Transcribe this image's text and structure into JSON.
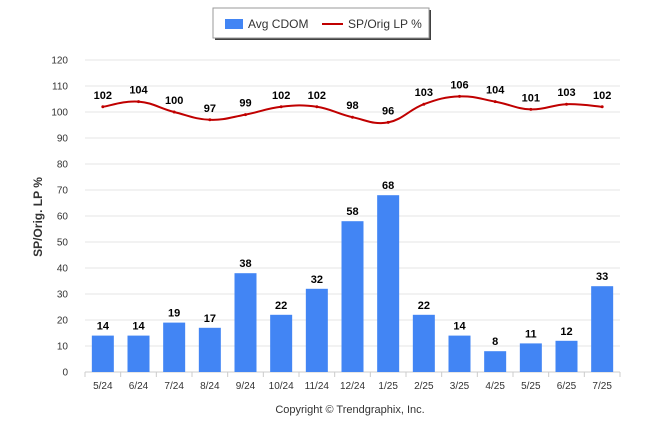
{
  "chart_data": {
    "type": "bar",
    "categories": [
      "5/24",
      "6/24",
      "7/24",
      "8/24",
      "9/24",
      "10/24",
      "11/24",
      "12/24",
      "1/25",
      "2/25",
      "3/25",
      "4/25",
      "5/25",
      "6/25",
      "7/25"
    ],
    "series": [
      {
        "name": "Avg CDOM",
        "kind": "bar",
        "color": "#4285f4",
        "values": [
          14,
          14,
          19,
          17,
          38,
          22,
          32,
          58,
          68,
          22,
          14,
          8,
          11,
          12,
          33
        ]
      },
      {
        "name": "SP/Orig LP %",
        "kind": "line",
        "color": "#c00000",
        "values": [
          102,
          104,
          100,
          97,
          99,
          102,
          102,
          98,
          96,
          103,
          106,
          104,
          101,
          103,
          102
        ]
      }
    ],
    "ylabel": "SP/Orig. LP %",
    "xlabel": "",
    "ylim": [
      0,
      120
    ],
    "yticks": [
      0,
      10,
      20,
      30,
      40,
      50,
      60,
      70,
      80,
      90,
      100,
      110,
      120
    ],
    "grid": true,
    "legend_position": "top-center"
  },
  "credit": "Copyright © Trendgraphix, Inc."
}
